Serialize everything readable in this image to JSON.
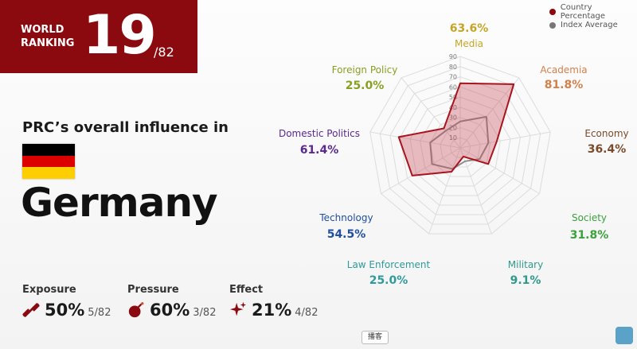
{
  "ranking": {
    "label": "WORLD RANKING",
    "value": "19",
    "total": "/82"
  },
  "subtitle": "PRC’s overall influence in",
  "country": "Germany",
  "flag_colors": [
    "#000000",
    "#dd0000",
    "#ffce00"
  ],
  "metrics": [
    {
      "label": "Exposure",
      "value": "50%",
      "rank": "5/82",
      "icon": "chain-link-icon"
    },
    {
      "label": "Pressure",
      "value": "60%",
      "rank": "3/82",
      "icon": "bomb-icon"
    },
    {
      "label": "Effect",
      "value": "21%",
      "rank": "4/82",
      "icon": "sparkle-icon"
    }
  ],
  "footer_tab": "播客",
  "chart_data": {
    "type": "radar",
    "scale_ticks": [
      10,
      20,
      30,
      40,
      50,
      60,
      70,
      80,
      90
    ],
    "range": [
      0,
      90
    ],
    "legend": [
      "Country Percentage",
      "Index Average"
    ],
    "legend_colors": [
      "#8a0a0f",
      "#777777"
    ],
    "axes": [
      {
        "name": "Media",
        "value_label": "63.6%",
        "color": "#c6a526"
      },
      {
        "name": "Academia",
        "value_label": "81.8%",
        "color": "#d2804a"
      },
      {
        "name": "Economy",
        "value_label": "36.4%",
        "color": "#7a4a2a"
      },
      {
        "name": "Society",
        "value_label": "31.8%",
        "color": "#3ca03c"
      },
      {
        "name": "Military",
        "value_label": "9.1%",
        "color": "#2e9a8a"
      },
      {
        "name": "Law Enforcement",
        "value_label": "25.0%",
        "color": "#2e9a9a"
      },
      {
        "name": "Technology",
        "value_label": "54.5%",
        "color": "#1e4fa0"
      },
      {
        "name": "Domestic Politics",
        "value_label": "61.4%",
        "color": "#5a2890"
      },
      {
        "name": "Foreign Policy",
        "value_label": "25.0%",
        "color": "#88a020"
      }
    ],
    "series": [
      {
        "name": "Country Percentage",
        "values": [
          63.6,
          81.8,
          36.4,
          31.8,
          9.1,
          25.0,
          54.5,
          61.4,
          25.0
        ]
      },
      {
        "name": "Index Average",
        "values": [
          26,
          40,
          28,
          22,
          14,
          22,
          32,
          30,
          22
        ]
      }
    ]
  }
}
